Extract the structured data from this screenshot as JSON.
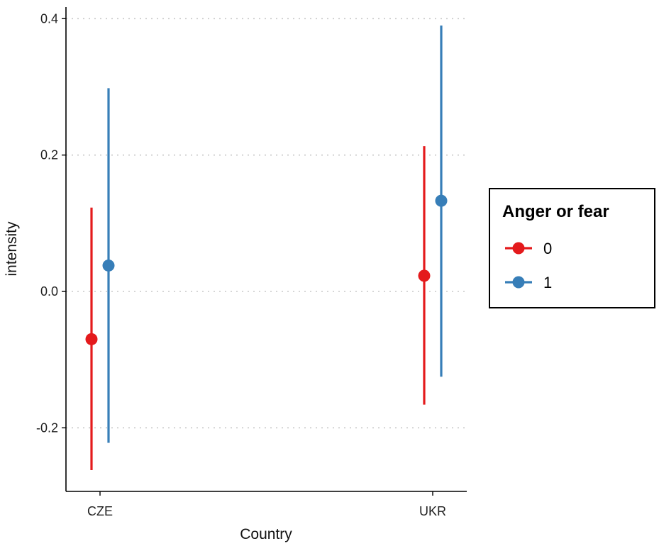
{
  "chart_data": {
    "type": "scatter",
    "subtype": "pointrange",
    "title": "",
    "xlabel": "Country",
    "ylabel": "intensity",
    "categories": [
      "CZE",
      "UKR"
    ],
    "ylim": [
      -0.3,
      0.42
    ],
    "yticks": [
      -0.2,
      0.0,
      0.2,
      0.4
    ],
    "ytick_labels": [
      "-0.2",
      "0.0",
      "0.2",
      "0.4"
    ],
    "grid": "horizontal-dotted",
    "legend": {
      "title": "Anger or fear",
      "placement": "right",
      "entries": [
        "0",
        "1"
      ]
    },
    "series": [
      {
        "name": "0",
        "color": "#e41a1c",
        "points": [
          {
            "category": "CZE",
            "estimate": -0.07,
            "lower": -0.262,
            "upper": 0.123
          },
          {
            "category": "UKR",
            "estimate": 0.023,
            "lower": -0.166,
            "upper": 0.213
          }
        ]
      },
      {
        "name": "1",
        "color": "#377eb8",
        "points": [
          {
            "category": "CZE",
            "estimate": 0.038,
            "lower": -0.222,
            "upper": 0.298
          },
          {
            "category": "UKR",
            "estimate": 0.133,
            "lower": -0.125,
            "upper": 0.39
          }
        ]
      }
    ]
  }
}
